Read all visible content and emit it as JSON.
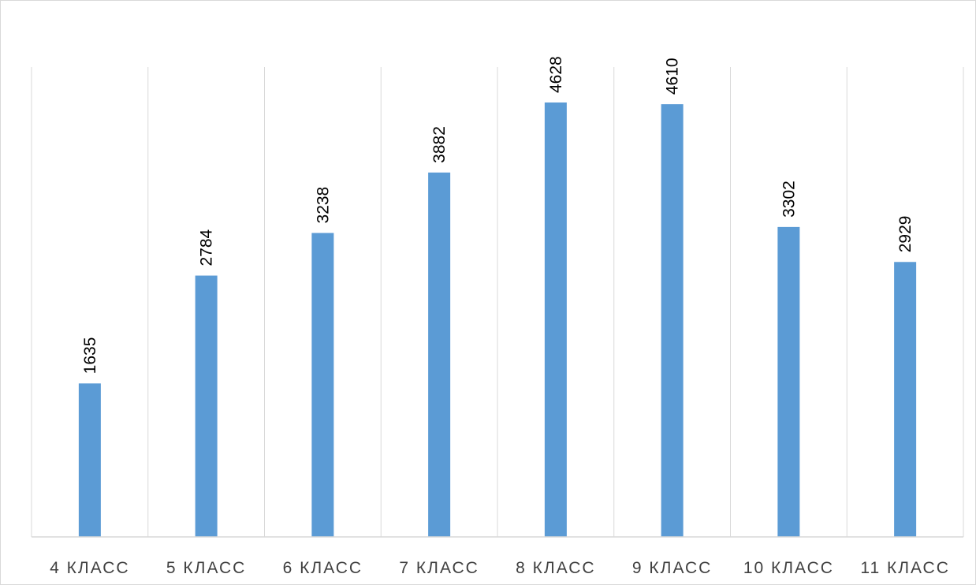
{
  "chart_data": {
    "type": "bar",
    "categories": [
      "4 КЛАСС",
      "5 КЛАСС",
      "6 КЛАСС",
      "7 КЛАСС",
      "8 КЛАСС",
      "9 КЛАСС",
      "10 КЛАСС",
      "11 КЛАСС"
    ],
    "values": [
      1635,
      2784,
      3238,
      3882,
      4628,
      4610,
      3302,
      2929
    ],
    "title": "",
    "xlabel": "",
    "ylabel": "",
    "ylim": [
      0,
      5000
    ],
    "grid": "vertical-category-separators",
    "data_labels": "vertical-above-bars",
    "legend": "none",
    "colors": {
      "bar": "#5b9bd5",
      "grid": "#d9d9d9",
      "axis": "#d9d9d9",
      "tick_text": "#404040",
      "label_text": "#000000"
    }
  }
}
